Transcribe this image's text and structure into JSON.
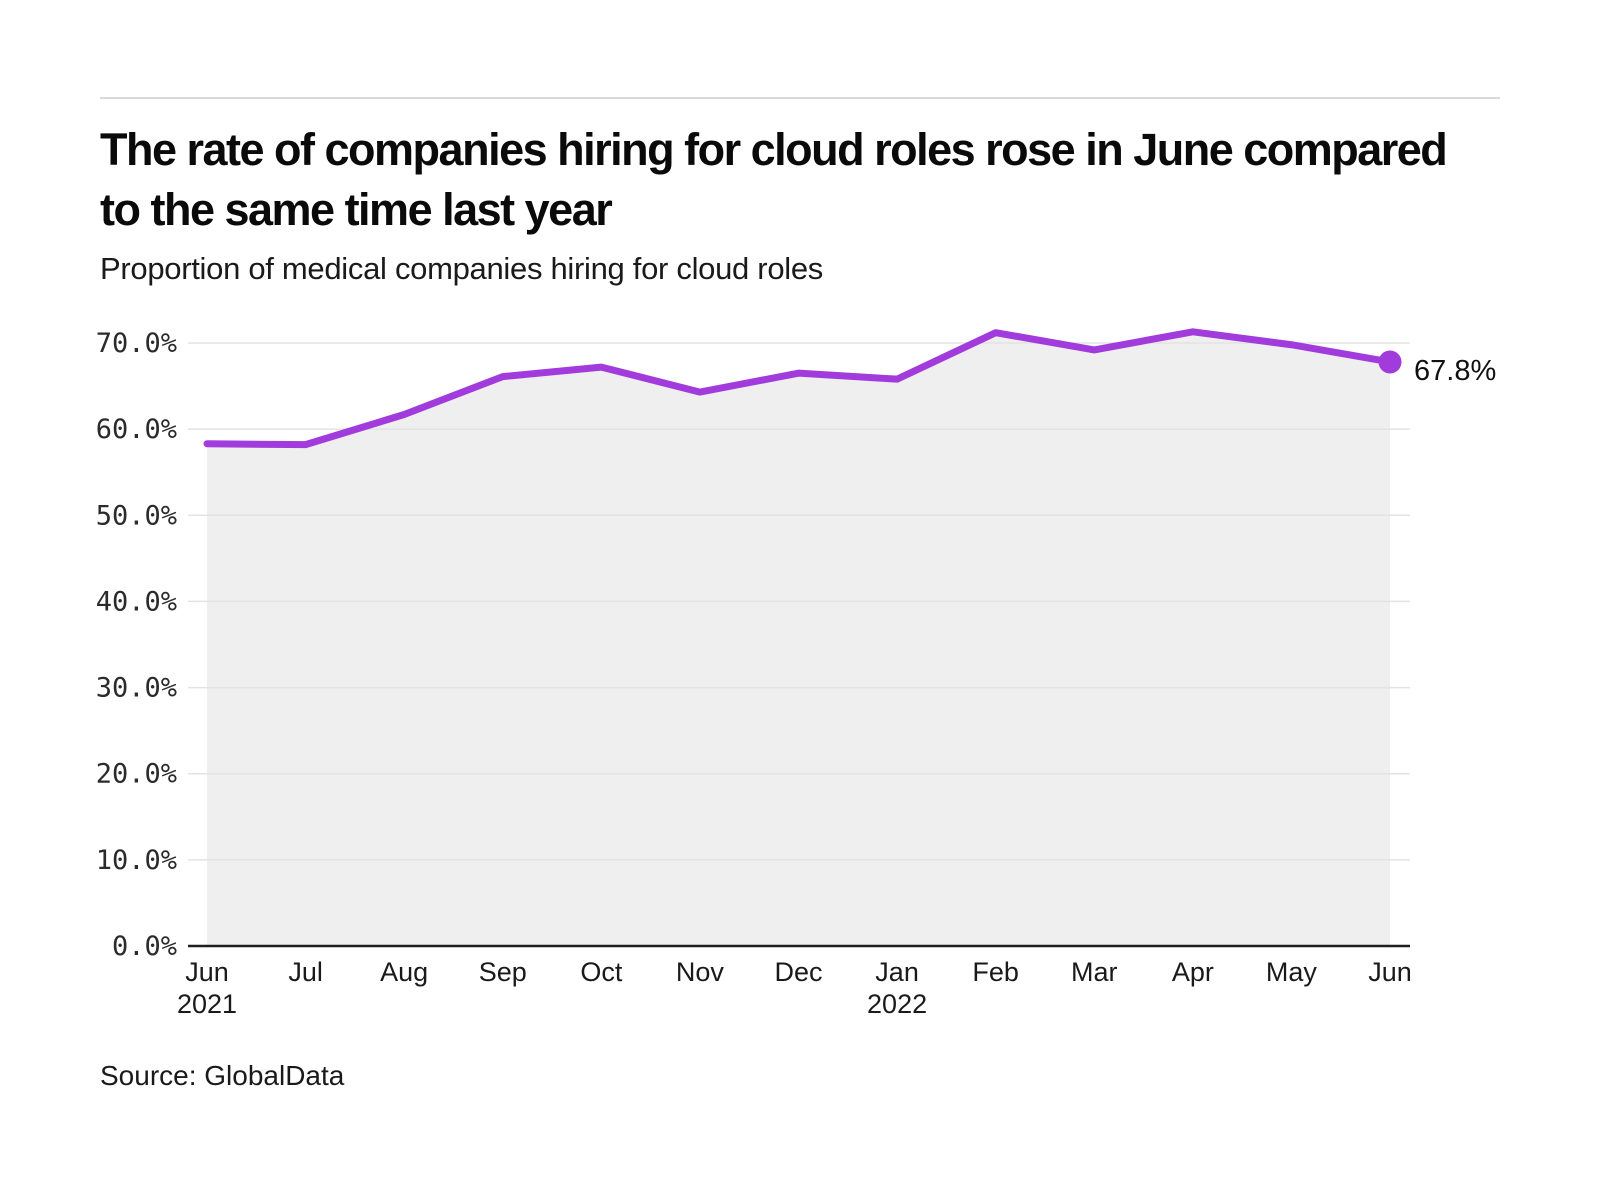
{
  "chart_data": {
    "type": "area",
    "title": "The rate of companies hiring for cloud roles rose in June compared to the same time last year",
    "subtitle": "Proportion of medical companies hiring for cloud roles",
    "source": "Source: GlobalData",
    "categories": [
      "Jun",
      "Jul",
      "Aug",
      "Sep",
      "Oct",
      "Nov",
      "Dec",
      "Jan",
      "Feb",
      "Mar",
      "Apr",
      "May",
      "Jun"
    ],
    "year_markers": [
      {
        "index": 0,
        "label": "2021"
      },
      {
        "index": 7,
        "label": "2022"
      }
    ],
    "series": [
      {
        "name": "Proportion of medical companies hiring for cloud roles",
        "values": [
          58.3,
          58.2,
          61.7,
          66.1,
          67.2,
          64.3,
          66.5,
          65.8,
          71.2,
          69.2,
          71.3,
          69.8,
          67.8
        ]
      }
    ],
    "end_label": "67.8%",
    "ylim": [
      0,
      70
    ],
    "ytick_step": 10,
    "ytick_suffix": "%",
    "grid": true,
    "legend": "none",
    "colors": {
      "line": "#A23BDC",
      "fill": "#EFEFEF",
      "grid": "#E3E3E3",
      "axis": "#1F1F1F",
      "text": "#1a1a1a",
      "divider": "#D9D9D9"
    }
  }
}
